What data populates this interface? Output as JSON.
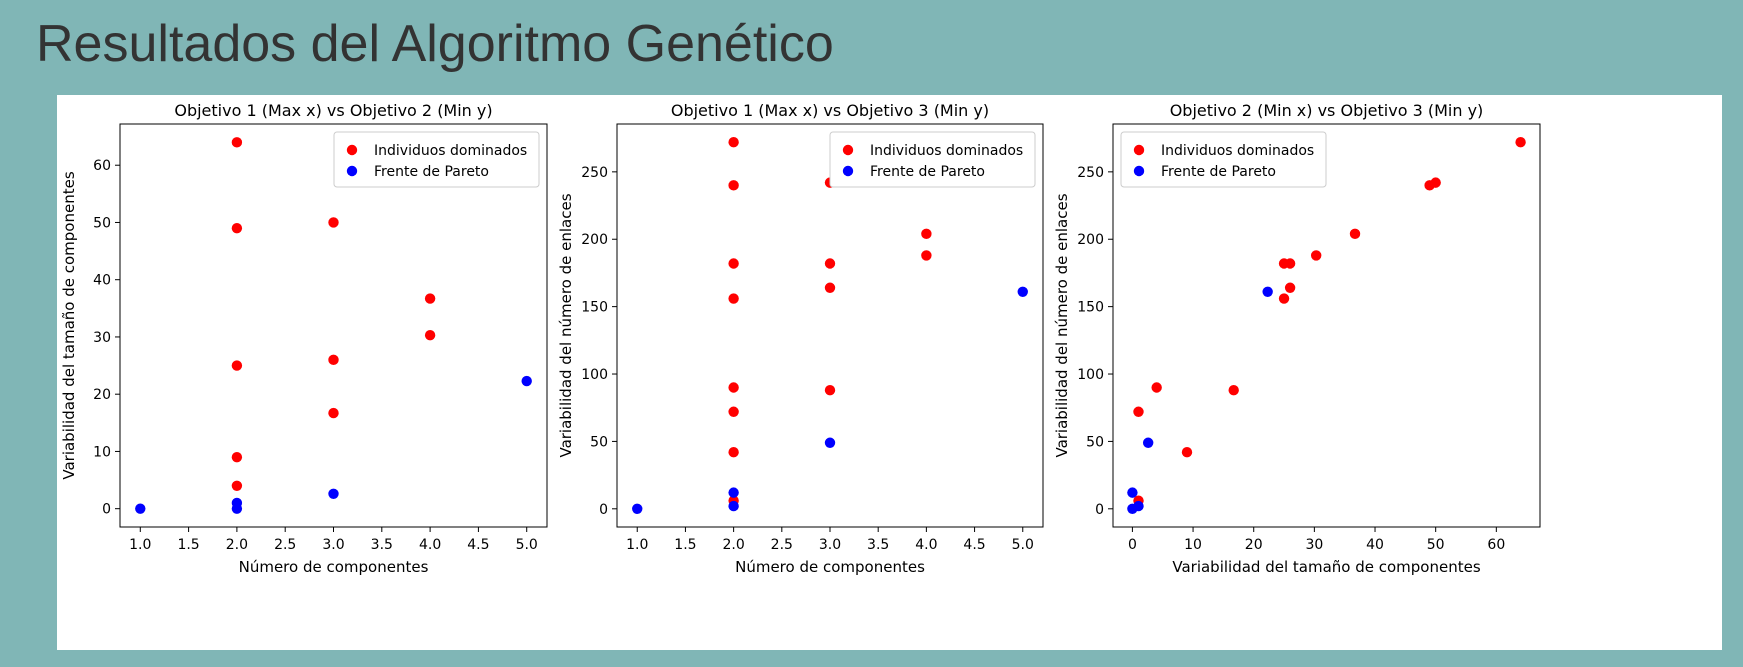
{
  "slide": {
    "title": "Resultados del Algoritmo Genético"
  },
  "colors": {
    "dominated": "#ff0000",
    "pareto": "#0000ff",
    "background": "#80b6b6"
  },
  "chart_data": [
    {
      "type": "scatter",
      "title": "Objetivo 1 (Max x) vs Objetivo 2 (Min y)",
      "xlabel": "Número de componentes",
      "ylabel": "Variabilidad del tamaño de componentes",
      "xlim": [
        0.79,
        5.21
      ],
      "ylim": [
        -3.2,
        67.2
      ],
      "xticks": [
        1.0,
        1.5,
        2.0,
        2.5,
        3.0,
        3.5,
        4.0,
        4.5,
        5.0
      ],
      "xtick_labels": [
        "1.0",
        "1.5",
        "2.0",
        "2.5",
        "3.0",
        "3.5",
        "4.0",
        "4.5",
        "5.0"
      ],
      "yticks": [
        0,
        10,
        20,
        30,
        40,
        50,
        60
      ],
      "ytick_labels": [
        "0",
        "10",
        "20",
        "30",
        "40",
        "50",
        "60"
      ],
      "legend_position": "top-right",
      "series": [
        {
          "name": "Individuos dominados",
          "color": "#ff0000",
          "points": [
            [
              2,
              64
            ],
            [
              2,
              49
            ],
            [
              2,
              25
            ],
            [
              2,
              9
            ],
            [
              2,
              4
            ],
            [
              3,
              50
            ],
            [
              3,
              26
            ],
            [
              3,
              16.7
            ],
            [
              4,
              36.7
            ],
            [
              4,
              30.3
            ]
          ]
        },
        {
          "name": "Frente de Pareto",
          "color": "#0000ff",
          "points": [
            [
              1,
              0
            ],
            [
              2,
              1
            ],
            [
              2,
              0
            ],
            [
              3,
              2.6
            ],
            [
              5,
              22.3
            ]
          ]
        }
      ]
    },
    {
      "type": "scatter",
      "title": "Objetivo 1 (Max x) vs Objetivo 3 (Min y)",
      "xlabel": "Número de componentes",
      "ylabel": "Variabilidad del número de enlaces",
      "xlim": [
        0.79,
        5.21
      ],
      "ylim": [
        -13.5,
        285.5
      ],
      "xticks": [
        1.0,
        1.5,
        2.0,
        2.5,
        3.0,
        3.5,
        4.0,
        4.5,
        5.0
      ],
      "xtick_labels": [
        "1.0",
        "1.5",
        "2.0",
        "2.5",
        "3.0",
        "3.5",
        "4.0",
        "4.5",
        "5.0"
      ],
      "yticks": [
        0,
        50,
        100,
        150,
        200,
        250
      ],
      "ytick_labels": [
        "0",
        "50",
        "100",
        "150",
        "200",
        "250"
      ],
      "legend_position": "top-right",
      "series": [
        {
          "name": "Individuos dominados",
          "color": "#ff0000",
          "points": [
            [
              2,
              272
            ],
            [
              2,
              240
            ],
            [
              2,
              182
            ],
            [
              2,
              156
            ],
            [
              2,
              90
            ],
            [
              2,
              72
            ],
            [
              2,
              42
            ],
            [
              2,
              6
            ],
            [
              3,
              242
            ],
            [
              3,
              182
            ],
            [
              3,
              164
            ],
            [
              3,
              88
            ],
            [
              4,
              204
            ],
            [
              4,
              188
            ]
          ]
        },
        {
          "name": "Frente de Pareto",
          "color": "#0000ff",
          "points": [
            [
              1,
              0
            ],
            [
              2,
              12
            ],
            [
              2,
              2
            ],
            [
              3,
              49
            ],
            [
              5,
              161
            ]
          ]
        }
      ]
    },
    {
      "type": "scatter",
      "title": "Objetivo 2 (Min x) vs Objetivo 3 (Min y)",
      "xlabel": "Variabilidad del tamaño de componentes",
      "ylabel": "Variabilidad del número de enlaces",
      "xlim": [
        -3.2,
        67.2
      ],
      "ylim": [
        -13.5,
        285.5
      ],
      "xticks": [
        0,
        10,
        20,
        30,
        40,
        50,
        60
      ],
      "xtick_labels": [
        "0",
        "10",
        "20",
        "30",
        "40",
        "50",
        "60"
      ],
      "yticks": [
        0,
        50,
        100,
        150,
        200,
        250
      ],
      "ytick_labels": [
        "0",
        "50",
        "100",
        "150",
        "200",
        "250"
      ],
      "legend_position": "top-left",
      "series": [
        {
          "name": "Individuos dominados",
          "color": "#ff0000",
          "points": [
            [
              64,
              272
            ],
            [
              49,
              240
            ],
            [
              50,
              242
            ],
            [
              25,
              182
            ],
            [
              26,
              182
            ],
            [
              25,
              156
            ],
            [
              26,
              164
            ],
            [
              30.3,
              188
            ],
            [
              36.7,
              204
            ],
            [
              4,
              90
            ],
            [
              1,
              72
            ],
            [
              16.7,
              88
            ],
            [
              9,
              42
            ],
            [
              1,
              6
            ]
          ]
        },
        {
          "name": "Frente de Pareto",
          "color": "#0000ff",
          "points": [
            [
              0,
              12
            ],
            [
              0,
              0
            ],
            [
              1,
              2
            ],
            [
              2.6,
              49
            ],
            [
              22.3,
              161
            ]
          ]
        }
      ]
    }
  ]
}
